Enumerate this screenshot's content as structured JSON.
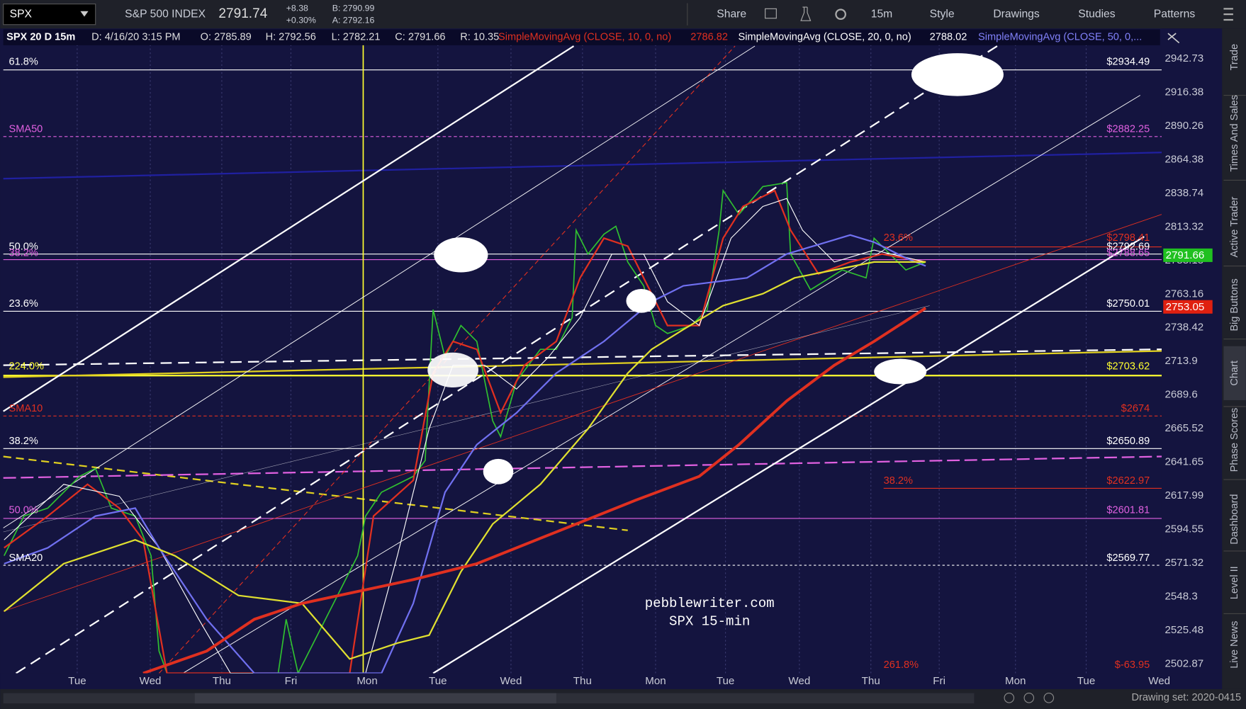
{
  "toolbar": {
    "symbol": "SPX",
    "name": "S&P 500 INDEX",
    "last": "2791.74",
    "change": "+8.38",
    "change_pct": "+0.30%",
    "bid": "B: 2790.99",
    "ask": "A: 2792.16",
    "buttons": [
      "Share",
      "15m",
      "Style",
      "Drawings",
      "Studies",
      "Patterns"
    ]
  },
  "info": {
    "symbol": "SPX 20 D 15m",
    "date": "D: 4/16/20 3:15 PM",
    "open": "O: 2785.89",
    "high": "H: 2792.56",
    "low": "L: 2782.21",
    "close": "C: 2791.66",
    "range": "R: 10.35",
    "studies": [
      {
        "name": "SimpleMovingAvg (CLOSE, 10, 0, no)",
        "value": "2786.82"
      },
      {
        "name": "SimpleMovingAvg (CLOSE, 20, 0, no)",
        "value": "2788.02"
      },
      {
        "name": "SimpleMovingAvg (CLOSE, 50, 0,..."
      }
    ]
  },
  "annotations": {
    "left": [
      "61.8%",
      "SMA50",
      "50.0%",
      "38.2%",
      "23.6%",
      "224.0%",
      "SMA10",
      "38.2%",
      "50.0%",
      "SMA20"
    ],
    "middle": [
      "23.6%",
      "38.2%",
      "261.8%"
    ],
    "right": [
      "$2934.49",
      "$2882.25",
      "$2798.41",
      "$2792.69",
      "$2788.65",
      "$2750.01",
      "$2703.62",
      "$2674",
      "$2650.89",
      "$2622.97",
      "$2601.81",
      "$2569.77",
      "$-63.95"
    ]
  },
  "watermark": [
    "pebblewriter.com",
    "SPX 15-min"
  ],
  "price_axis": {
    "labels": [
      "2942.73",
      "2916.38",
      "2890.26",
      "2864.38",
      "2838.74",
      "2813.32",
      "2788.15",
      "2763.16",
      "2738.42",
      "2713.9",
      "2689.6",
      "2665.52",
      "2641.65",
      "2617.99",
      "2594.55",
      "2571.32",
      "2548.3",
      "2525.48",
      "2502.87"
    ],
    "badges": [
      "2791.66",
      "2753.05"
    ]
  },
  "time_axis": {
    "labels": [
      "Tue",
      "Wed",
      "Thu",
      "Fri",
      "Mon",
      "Tue",
      "Wed",
      "Thu",
      "Mon",
      "Tue",
      "Wed",
      "Thu",
      "Fri",
      "Mon",
      "Tue",
      "Wed"
    ]
  },
  "sidebar": [
    "Trade",
    "Times And Sales",
    "Active Trader",
    "Big Buttons",
    "Chart",
    "Phase Scores",
    "Dashboard",
    "Level II",
    "Live News"
  ],
  "footer": {
    "drawing_set": "Drawing set: 2020-0415"
  }
}
